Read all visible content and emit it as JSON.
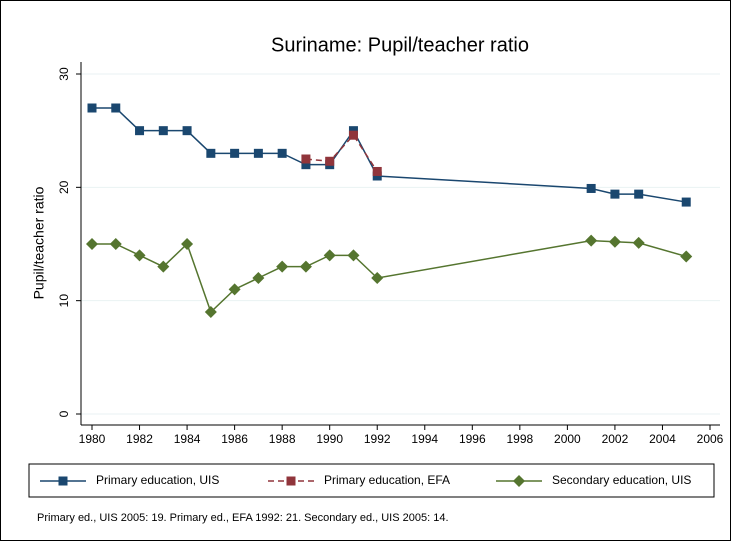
{
  "chart_data": {
    "type": "line",
    "title": "Suriname: Pupil/teacher ratio",
    "y_label": "Pupil/teacher ratio",
    "note": "Primary ed., UIS 2005: 19. Primary ed., EFA 1992: 21. Secondary ed., UIS 2005: 14.",
    "x": [
      1980,
      1981,
      1982,
      1983,
      1984,
      1985,
      1986,
      1987,
      1988,
      1989,
      1990,
      1991,
      1992,
      2001,
      2002,
      2003,
      2005
    ],
    "series": [
      {
        "name": "Primary education, UIS",
        "color": "#1a476f",
        "marker": "square",
        "dash": false,
        "values": [
          27,
          27,
          25,
          25,
          25,
          23,
          23,
          23,
          23,
          22,
          22,
          25,
          21,
          19.9,
          19.4,
          19.4,
          18.7
        ]
      },
      {
        "name": "Primary education, EFA",
        "color": "#90353b",
        "marker": "square",
        "dash": true,
        "values": [
          null,
          null,
          null,
          null,
          null,
          null,
          null,
          null,
          null,
          22.5,
          22.3,
          24.6,
          21.4,
          null,
          null,
          null,
          null
        ]
      },
      {
        "name": "Secondary education, UIS",
        "color": "#55752f",
        "marker": "diamond",
        "dash": false,
        "values": [
          15,
          15,
          14,
          13,
          15,
          9,
          11,
          12,
          13,
          13,
          14,
          14,
          12,
          15.3,
          15.2,
          15.1,
          13.9
        ]
      }
    ],
    "xlim": [
      1980,
      2006
    ],
    "xticks": [
      1980,
      1982,
      1984,
      1986,
      1988,
      1990,
      1992,
      1994,
      1996,
      1998,
      2000,
      2002,
      2004,
      2006
    ],
    "ylim": [
      0,
      30
    ],
    "yticks": [
      0,
      10,
      20,
      30
    ],
    "grid": true,
    "legend": "bottom"
  }
}
